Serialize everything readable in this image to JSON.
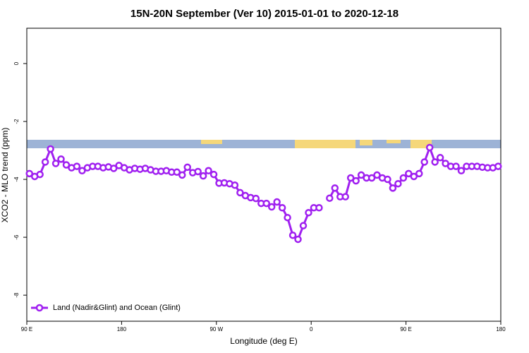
{
  "chart_data": {
    "type": "line",
    "title": "15N-20N September (Ver 10)   2015-01-01 to 2020-12-18",
    "xlabel": "Longitude (deg E)",
    "ylabel": "XCO2 - MLO trend (ppm)",
    "xlim": [
      90,
      540
    ],
    "ylim": [
      -8.9,
      1.22
    ],
    "xticks": [
      {
        "value": 90,
        "label": "90 E"
      },
      180,
      {
        "value": 270,
        "label": "90 W"
      },
      {
        "value": 360,
        "label": "0"
      },
      {
        "value": 450,
        "label": "90 E"
      },
      {
        "value": 540,
        "label": "180"
      }
    ],
    "yticks": [
      0,
      -2,
      -4,
      -6,
      -8
    ],
    "grid": false,
    "legend": "bottom-left",
    "x": [
      92.5,
      97.5,
      102.5,
      107.5,
      112.5,
      117.5,
      122.5,
      127.5,
      132.5,
      137.5,
      142.5,
      147.5,
      152.5,
      157.5,
      162.5,
      167.5,
      172.5,
      177.5,
      182.5,
      187.5,
      192.5,
      197.5,
      202.5,
      207.5,
      212.5,
      217.5,
      222.5,
      227.5,
      232.5,
      237.5,
      242.5,
      247.5,
      252.5,
      257.5,
      262.5,
      267.5,
      272.5,
      277.5,
      282.5,
      287.5,
      292.5,
      297.5,
      302.5,
      307.5,
      312.5,
      317.5,
      322.5,
      327.5,
      332.5,
      337.5,
      342.5,
      347.5,
      352.5,
      357.5,
      362.5,
      367.5,
      372.5,
      377.5,
      382.5,
      387.5,
      392.5,
      397.5,
      402.5,
      407.5,
      412.5,
      417.5,
      422.5,
      427.5,
      432.5,
      437.5,
      442.5,
      447.5,
      452.5,
      457.5,
      462.5,
      467.5,
      472.5,
      477.5,
      482.5,
      487.5,
      492.5,
      497.5,
      502.5,
      507.5,
      512.5,
      517.5,
      522.5,
      527.5,
      532.5,
      537.5
    ],
    "series": [
      {
        "name": "Land (Nadir&Glint) and Ocean (Glint)",
        "color": "#a020f0",
        "values": [
          -3.8,
          -3.9,
          -3.83,
          -3.4,
          -2.95,
          -3.45,
          -3.3,
          -3.5,
          -3.6,
          -3.55,
          -3.7,
          -3.6,
          -3.55,
          -3.55,
          -3.6,
          -3.57,
          -3.62,
          -3.52,
          -3.6,
          -3.67,
          -3.62,
          -3.65,
          -3.62,
          -3.67,
          -3.72,
          -3.72,
          -3.7,
          -3.75,
          -3.75,
          -3.85,
          -3.58,
          -3.77,
          -3.73,
          -3.88,
          -3.7,
          -3.83,
          -4.13,
          -4.12,
          -4.15,
          -4.2,
          -4.46,
          -4.56,
          -4.63,
          -4.66,
          -4.83,
          -4.83,
          -4.95,
          -4.78,
          -4.98,
          -5.32,
          -5.93,
          -6.07,
          -5.6,
          -5.15,
          -4.98,
          -4.98,
          null,
          -4.65,
          -4.3,
          -4.6,
          -4.6,
          -3.95,
          -4.05,
          -3.85,
          -3.95,
          -3.95,
          -3.85,
          -3.95,
          -4.0,
          -4.3,
          -4.15,
          -3.95,
          -3.8,
          -3.9,
          -3.8,
          -3.4,
          -2.9,
          -3.4,
          -3.25,
          -3.45,
          -3.55,
          -3.55,
          -3.7,
          -3.55,
          -3.55,
          -3.55,
          -3.58,
          -3.6,
          -3.6,
          -3.55
        ]
      }
    ]
  }
}
